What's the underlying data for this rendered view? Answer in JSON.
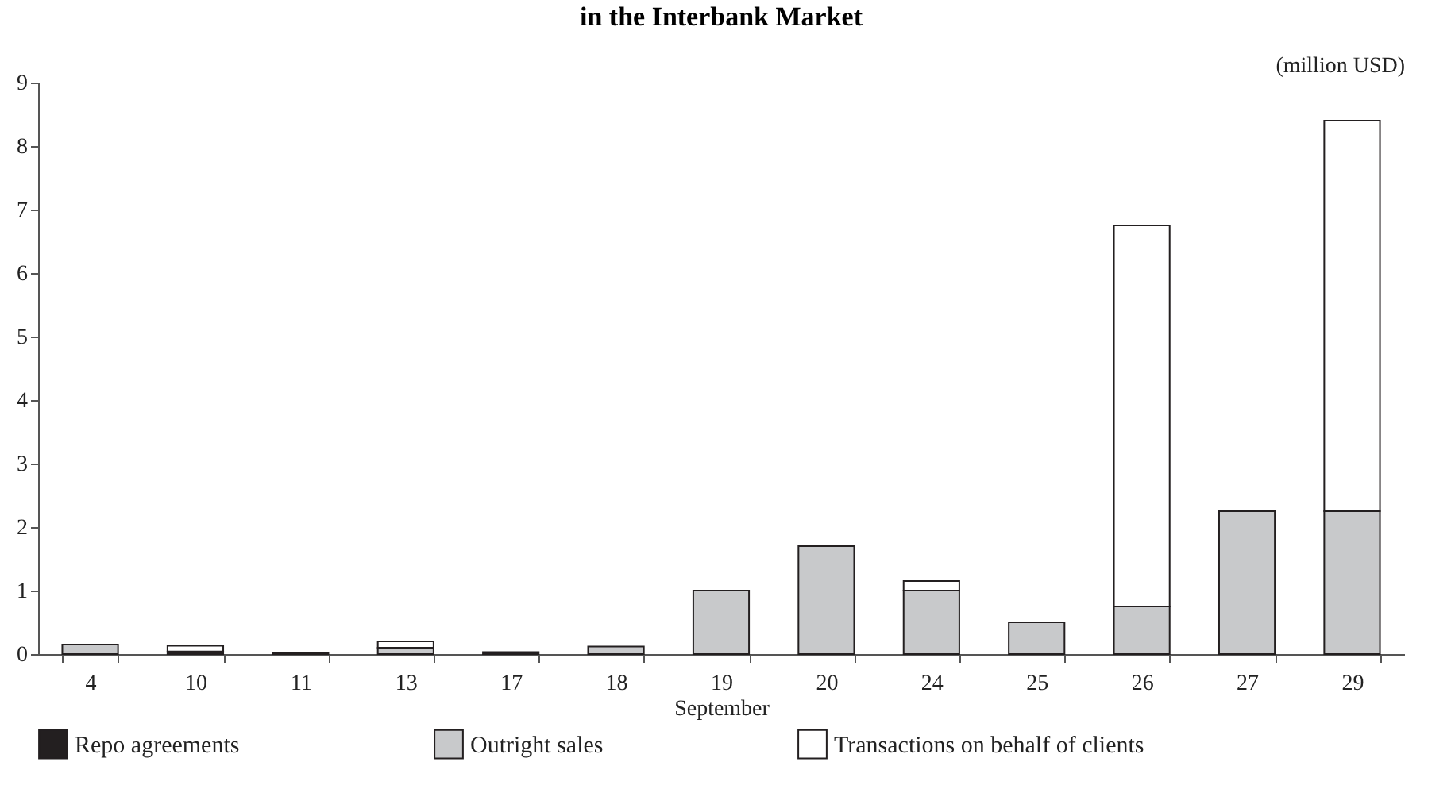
{
  "chart_data": {
    "type": "bar",
    "title": "in the Interbank Market",
    "ylabel": "(million USD)",
    "xlabel": "September",
    "categories": [
      "4",
      "10",
      "11",
      "13",
      "17",
      "18",
      "19",
      "20",
      "24",
      "25",
      "26",
      "27",
      "29"
    ],
    "stacked": true,
    "legend": "bottom",
    "grid": false,
    "ylim": [
      0,
      9
    ],
    "yticks": [
      0,
      1,
      2,
      3,
      4,
      5,
      6,
      7,
      8,
      9
    ],
    "series": [
      {
        "name": "Repo agreements",
        "color": "#231f20",
        "values": [
          null,
          0.04,
          0.02,
          null,
          0.03,
          null,
          null,
          null,
          null,
          null,
          null,
          null,
          null
        ]
      },
      {
        "name": "Outright sales",
        "color": "#c8c9cb",
        "values": [
          0.15,
          null,
          null,
          0.1,
          null,
          0.12,
          1.0,
          1.7,
          1.0,
          0.5,
          0.75,
          2.25,
          2.25
        ]
      },
      {
        "name": "Transactions on behalf of clients",
        "color": "#ffffff",
        "values": [
          null,
          0.09,
          null,
          0.1,
          null,
          null,
          null,
          null,
          0.15,
          null,
          6.0,
          null,
          6.15
        ]
      }
    ]
  }
}
